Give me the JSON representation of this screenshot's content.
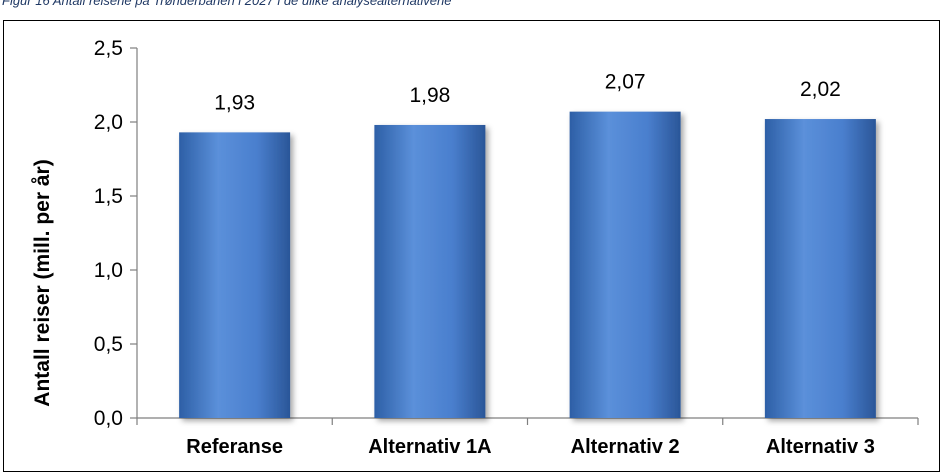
{
  "caption": "Figur 16 Antall reisene på Trønderbanen i 2027 i de ulike analysealternativene",
  "chart_data": {
    "type": "bar",
    "categories": [
      "Referanse",
      "Alternativ 1A",
      "Alternativ 2",
      "Alternativ 3"
    ],
    "values": [
      1.93,
      1.98,
      2.07,
      2.02
    ],
    "value_labels": [
      "1,93",
      "1,98",
      "2,07",
      "2,02"
    ],
    "ylabel": "Antall reiser (mill. per år)",
    "xlabel": "",
    "ylim": [
      0,
      2.5
    ],
    "yticks": [
      0,
      0.5,
      1.0,
      1.5,
      2.0,
      2.5
    ],
    "ytick_labels": [
      "0,0",
      "0,5",
      "1,0",
      "1,5",
      "2,0",
      "2,5"
    ],
    "grid": false,
    "legend": "none",
    "bar_color": "#4a7fce"
  }
}
